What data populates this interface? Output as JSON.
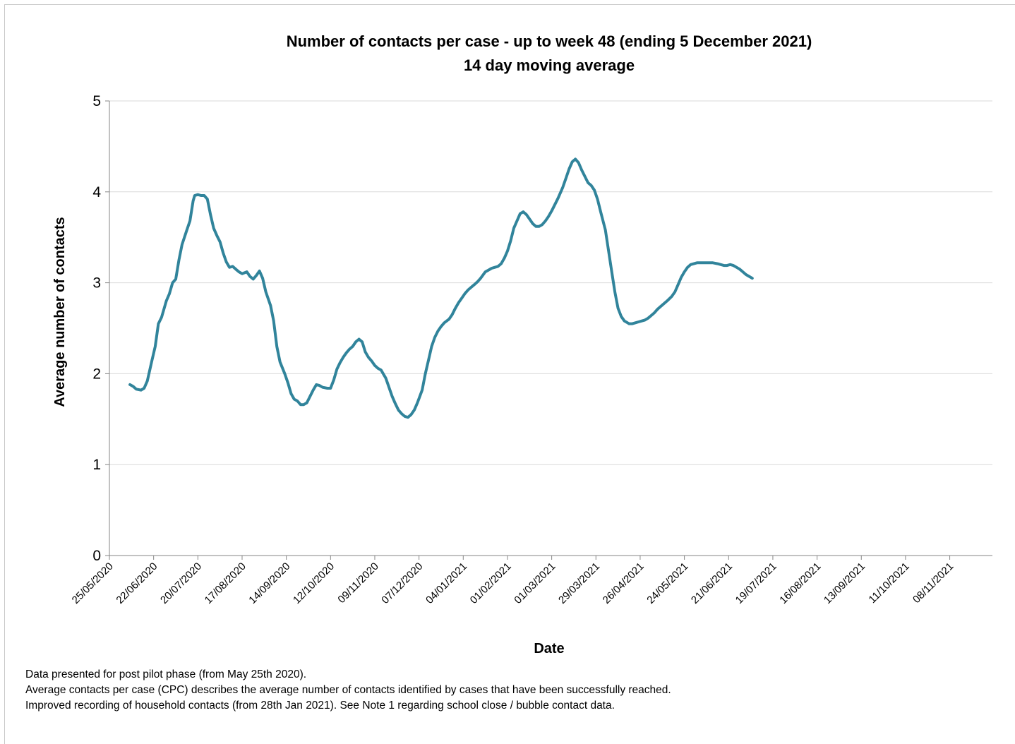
{
  "chart_data": {
    "type": "line",
    "title": "Number of contacts per case - up to week 48 (ending 5 December 2021)",
    "subtitle": "14 day moving average",
    "xlabel": "Date",
    "ylabel": "Average number of contacts",
    "ylim": [
      0,
      5
    ],
    "yticks": [
      "0",
      "1",
      "2",
      "3",
      "4",
      "5"
    ],
    "xlim": [
      "2020-05-25",
      "2021-12-05"
    ],
    "xtick_labels": [
      "25/05/2020",
      "22/06/2020",
      "20/07/2020",
      "17/08/2020",
      "14/09/2020",
      "12/10/2020",
      "09/11/2020",
      "07/12/2020",
      "04/01/2021",
      "01/02/2021",
      "01/03/2021",
      "29/03/2021",
      "26/04/2021",
      "24/05/2021",
      "21/06/2021",
      "19/07/2021",
      "16/08/2021",
      "13/09/2021",
      "11/10/2021",
      "08/11/2021"
    ],
    "grid": "horizontal",
    "line_color": "#31849b",
    "series": [
      {
        "points": [
          [
            "2020-06-07",
            1.88
          ],
          [
            "2020-06-09",
            1.86
          ],
          [
            "2020-06-11",
            1.83
          ],
          [
            "2020-06-14",
            1.82
          ],
          [
            "2020-06-16",
            1.84
          ],
          [
            "2020-06-18",
            1.92
          ],
          [
            "2020-06-21",
            2.15
          ],
          [
            "2020-06-23",
            2.3
          ],
          [
            "2020-06-25",
            2.55
          ],
          [
            "2020-06-27",
            2.62
          ],
          [
            "2020-06-30",
            2.8
          ],
          [
            "2020-07-02",
            2.88
          ],
          [
            "2020-07-04",
            3.0
          ],
          [
            "2020-07-06",
            3.04
          ],
          [
            "2020-07-08",
            3.25
          ],
          [
            "2020-07-10",
            3.42
          ],
          [
            "2020-07-13",
            3.58
          ],
          [
            "2020-07-15",
            3.68
          ],
          [
            "2020-07-17",
            3.9
          ],
          [
            "2020-07-18",
            3.96
          ],
          [
            "2020-07-20",
            3.97
          ],
          [
            "2020-07-22",
            3.96
          ],
          [
            "2020-07-24",
            3.96
          ],
          [
            "2020-07-26",
            3.92
          ],
          [
            "2020-07-28",
            3.75
          ],
          [
            "2020-07-30",
            3.6
          ],
          [
            "2020-08-01",
            3.52
          ],
          [
            "2020-08-03",
            3.45
          ],
          [
            "2020-08-05",
            3.33
          ],
          [
            "2020-08-07",
            3.23
          ],
          [
            "2020-08-09",
            3.17
          ],
          [
            "2020-08-11",
            3.18
          ],
          [
            "2020-08-13",
            3.15
          ],
          [
            "2020-08-15",
            3.12
          ],
          [
            "2020-08-17",
            3.1
          ],
          [
            "2020-08-20",
            3.12
          ],
          [
            "2020-08-22",
            3.07
          ],
          [
            "2020-08-24",
            3.04
          ],
          [
            "2020-08-26",
            3.08
          ],
          [
            "2020-08-28",
            3.13
          ],
          [
            "2020-08-30",
            3.05
          ],
          [
            "2020-09-01",
            2.9
          ],
          [
            "2020-09-04",
            2.75
          ],
          [
            "2020-09-06",
            2.58
          ],
          [
            "2020-09-08",
            2.3
          ],
          [
            "2020-09-10",
            2.13
          ],
          [
            "2020-09-13",
            2.0
          ],
          [
            "2020-09-15",
            1.9
          ],
          [
            "2020-09-17",
            1.78
          ],
          [
            "2020-09-19",
            1.72
          ],
          [
            "2020-09-21",
            1.7
          ],
          [
            "2020-09-23",
            1.66
          ],
          [
            "2020-09-25",
            1.66
          ],
          [
            "2020-09-27",
            1.68
          ],
          [
            "2020-09-29",
            1.75
          ],
          [
            "2020-10-01",
            1.82
          ],
          [
            "2020-10-03",
            1.88
          ],
          [
            "2020-10-05",
            1.87
          ],
          [
            "2020-10-07",
            1.85
          ],
          [
            "2020-10-10",
            1.84
          ],
          [
            "2020-10-12",
            1.84
          ],
          [
            "2020-10-14",
            1.93
          ],
          [
            "2020-10-16",
            2.05
          ],
          [
            "2020-10-18",
            2.12
          ],
          [
            "2020-10-20",
            2.18
          ],
          [
            "2020-10-22",
            2.23
          ],
          [
            "2020-10-24",
            2.27
          ],
          [
            "2020-10-26",
            2.3
          ],
          [
            "2020-10-28",
            2.35
          ],
          [
            "2020-10-30",
            2.38
          ],
          [
            "2020-11-01",
            2.35
          ],
          [
            "2020-11-03",
            2.24
          ],
          [
            "2020-11-05",
            2.18
          ],
          [
            "2020-11-07",
            2.14
          ],
          [
            "2020-11-09",
            2.09
          ],
          [
            "2020-11-11",
            2.06
          ],
          [
            "2020-11-13",
            2.04
          ],
          [
            "2020-11-16",
            1.95
          ],
          [
            "2020-11-18",
            1.85
          ],
          [
            "2020-11-20",
            1.75
          ],
          [
            "2020-11-22",
            1.67
          ],
          [
            "2020-11-24",
            1.6
          ],
          [
            "2020-11-26",
            1.56
          ],
          [
            "2020-11-28",
            1.53
          ],
          [
            "2020-11-30",
            1.52
          ],
          [
            "2020-12-02",
            1.55
          ],
          [
            "2020-12-04",
            1.6
          ],
          [
            "2020-12-06",
            1.68
          ],
          [
            "2020-12-09",
            1.82
          ],
          [
            "2020-12-11",
            2.0
          ],
          [
            "2020-12-13",
            2.15
          ],
          [
            "2020-12-15",
            2.3
          ],
          [
            "2020-12-17",
            2.4
          ],
          [
            "2020-12-19",
            2.47
          ],
          [
            "2020-12-21",
            2.52
          ],
          [
            "2020-12-23",
            2.56
          ],
          [
            "2020-12-26",
            2.6
          ],
          [
            "2020-12-28",
            2.65
          ],
          [
            "2020-12-30",
            2.72
          ],
          [
            "2021-01-01",
            2.78
          ],
          [
            "2021-01-03",
            2.83
          ],
          [
            "2021-01-05",
            2.88
          ],
          [
            "2021-01-07",
            2.92
          ],
          [
            "2021-01-09",
            2.95
          ],
          [
            "2021-01-11",
            2.98
          ],
          [
            "2021-01-13",
            3.01
          ],
          [
            "2021-01-15",
            3.05
          ],
          [
            "2021-01-18",
            3.12
          ],
          [
            "2021-01-20",
            3.14
          ],
          [
            "2021-01-22",
            3.16
          ],
          [
            "2021-01-24",
            3.17
          ],
          [
            "2021-01-26",
            3.18
          ],
          [
            "2021-01-28",
            3.21
          ],
          [
            "2021-01-30",
            3.27
          ],
          [
            "2021-02-01",
            3.35
          ],
          [
            "2021-02-03",
            3.46
          ],
          [
            "2021-02-05",
            3.6
          ],
          [
            "2021-02-07",
            3.68
          ],
          [
            "2021-02-09",
            3.76
          ],
          [
            "2021-02-11",
            3.78
          ],
          [
            "2021-02-13",
            3.75
          ],
          [
            "2021-02-15",
            3.7
          ],
          [
            "2021-02-17",
            3.65
          ],
          [
            "2021-02-19",
            3.62
          ],
          [
            "2021-02-21",
            3.62
          ],
          [
            "2021-02-23",
            3.64
          ],
          [
            "2021-02-25",
            3.68
          ],
          [
            "2021-02-27",
            3.73
          ],
          [
            "2021-03-01",
            3.79
          ],
          [
            "2021-03-03",
            3.86
          ],
          [
            "2021-03-05",
            3.93
          ],
          [
            "2021-03-08",
            4.05
          ],
          [
            "2021-03-10",
            4.15
          ],
          [
            "2021-03-12",
            4.25
          ],
          [
            "2021-03-14",
            4.33
          ],
          [
            "2021-03-16",
            4.36
          ],
          [
            "2021-03-18",
            4.32
          ],
          [
            "2021-03-20",
            4.24
          ],
          [
            "2021-03-22",
            4.17
          ],
          [
            "2021-03-24",
            4.1
          ],
          [
            "2021-03-26",
            4.07
          ],
          [
            "2021-03-28",
            4.02
          ],
          [
            "2021-03-30",
            3.92
          ],
          [
            "2021-04-01",
            3.78
          ],
          [
            "2021-04-04",
            3.58
          ],
          [
            "2021-04-06",
            3.35
          ],
          [
            "2021-04-08",
            3.12
          ],
          [
            "2021-04-10",
            2.9
          ],
          [
            "2021-04-12",
            2.72
          ],
          [
            "2021-04-14",
            2.63
          ],
          [
            "2021-04-16",
            2.58
          ],
          [
            "2021-04-19",
            2.55
          ],
          [
            "2021-04-21",
            2.55
          ],
          [
            "2021-04-23",
            2.56
          ],
          [
            "2021-04-25",
            2.57
          ],
          [
            "2021-04-27",
            2.58
          ],
          [
            "2021-04-29",
            2.59
          ],
          [
            "2021-05-01",
            2.61
          ],
          [
            "2021-05-03",
            2.64
          ],
          [
            "2021-05-05",
            2.67
          ],
          [
            "2021-05-07",
            2.71
          ],
          [
            "2021-05-09",
            2.74
          ],
          [
            "2021-05-11",
            2.77
          ],
          [
            "2021-05-13",
            2.8
          ],
          [
            "2021-05-16",
            2.85
          ],
          [
            "2021-05-18",
            2.9
          ],
          [
            "2021-05-20",
            2.98
          ],
          [
            "2021-05-22",
            3.06
          ],
          [
            "2021-05-24",
            3.12
          ],
          [
            "2021-05-26",
            3.17
          ],
          [
            "2021-05-28",
            3.2
          ],
          [
            "2021-05-30",
            3.21
          ],
          [
            "2021-06-01",
            3.22
          ],
          [
            "2021-06-03",
            3.22
          ],
          [
            "2021-06-05",
            3.22
          ],
          [
            "2021-06-07",
            3.22
          ],
          [
            "2021-06-09",
            3.22
          ],
          [
            "2021-06-11",
            3.22
          ],
          [
            "2021-06-14",
            3.21
          ],
          [
            "2021-06-16",
            3.2
          ],
          [
            "2021-06-18",
            3.19
          ],
          [
            "2021-06-20",
            3.19
          ],
          [
            "2021-06-22",
            3.2
          ],
          [
            "2021-06-24",
            3.19
          ],
          [
            "2021-06-26",
            3.17
          ],
          [
            "2021-06-28",
            3.15
          ],
          [
            "2021-06-30",
            3.12
          ],
          [
            "2021-07-02",
            3.09
          ],
          [
            "2021-07-04",
            3.07
          ],
          [
            "2021-07-06",
            3.05
          ]
        ]
      }
    ]
  },
  "notes": [
    "Data presented  for post pilot phase (from May 25th 2020).",
    "Average contacts per case (CPC) describes the average number of contacts identified by cases that have been successfully reached.",
    "Improved recording of household contacts (from 28th Jan 2021). See Note 1 regarding school close / bubble contact data."
  ]
}
